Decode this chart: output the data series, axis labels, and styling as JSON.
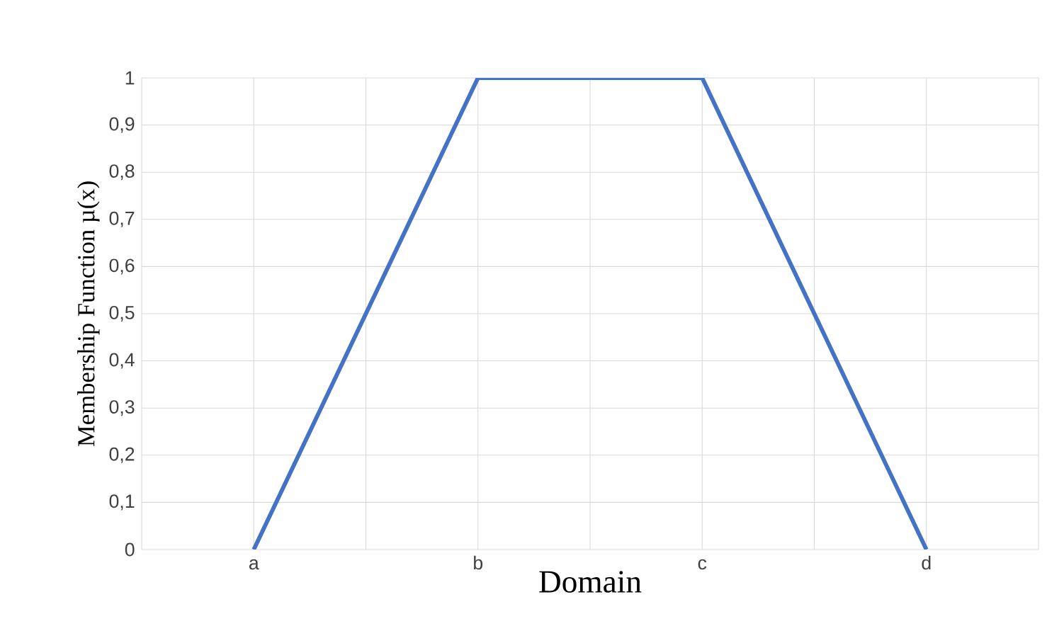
{
  "chart_data": {
    "type": "line",
    "xlabel": "Domain",
    "ylabel": "Membership Function µ(x)",
    "categories": [
      "a",
      "b",
      "c",
      "d"
    ],
    "series": [
      {
        "color": "#4472c4",
        "values": [
          0,
          1,
          1,
          0
        ]
      }
    ],
    "ylim": [
      0,
      1
    ],
    "yticks": [
      0,
      {
        "value": 0.1,
        "label": "0,1"
      },
      {
        "value": 0.2,
        "label": "0,2"
      },
      {
        "value": 0.3,
        "label": "0,3"
      },
      {
        "value": 0.4,
        "label": "0,4"
      },
      {
        "value": 0.5,
        "label": "0,5"
      },
      {
        "value": 0.6,
        "label": "0,6"
      },
      {
        "value": 0.7,
        "label": "0,7"
      },
      {
        "value": 0.8,
        "label": "0,8"
      },
      {
        "value": 0.9,
        "label": "0,9"
      },
      1
    ],
    "grid": true,
    "marker": "none",
    "line_style": "solid"
  }
}
